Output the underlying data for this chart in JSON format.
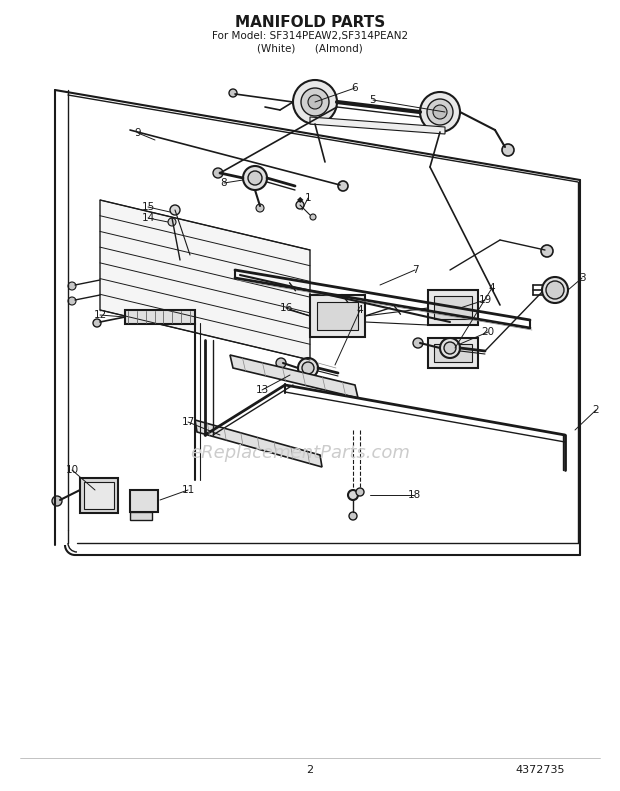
{
  "title": "MANIFOLD PARTS",
  "subtitle1": "For Model: SF314PEAW2,SF314PEAN2",
  "subtitle2": "(White)      (Almond)",
  "page_number": "2",
  "part_number": "4372735",
  "bg_color": "#ffffff",
  "line_color": "#1a1a1a",
  "title_fontsize": 11,
  "subtitle_fontsize": 7.5,
  "label_fontsize": 7.5,
  "footer_fontsize": 8,
  "watermark_text": "eReplacementParts.com",
  "watermark_color": "#cccccc",
  "watermark_fontsize": 13
}
